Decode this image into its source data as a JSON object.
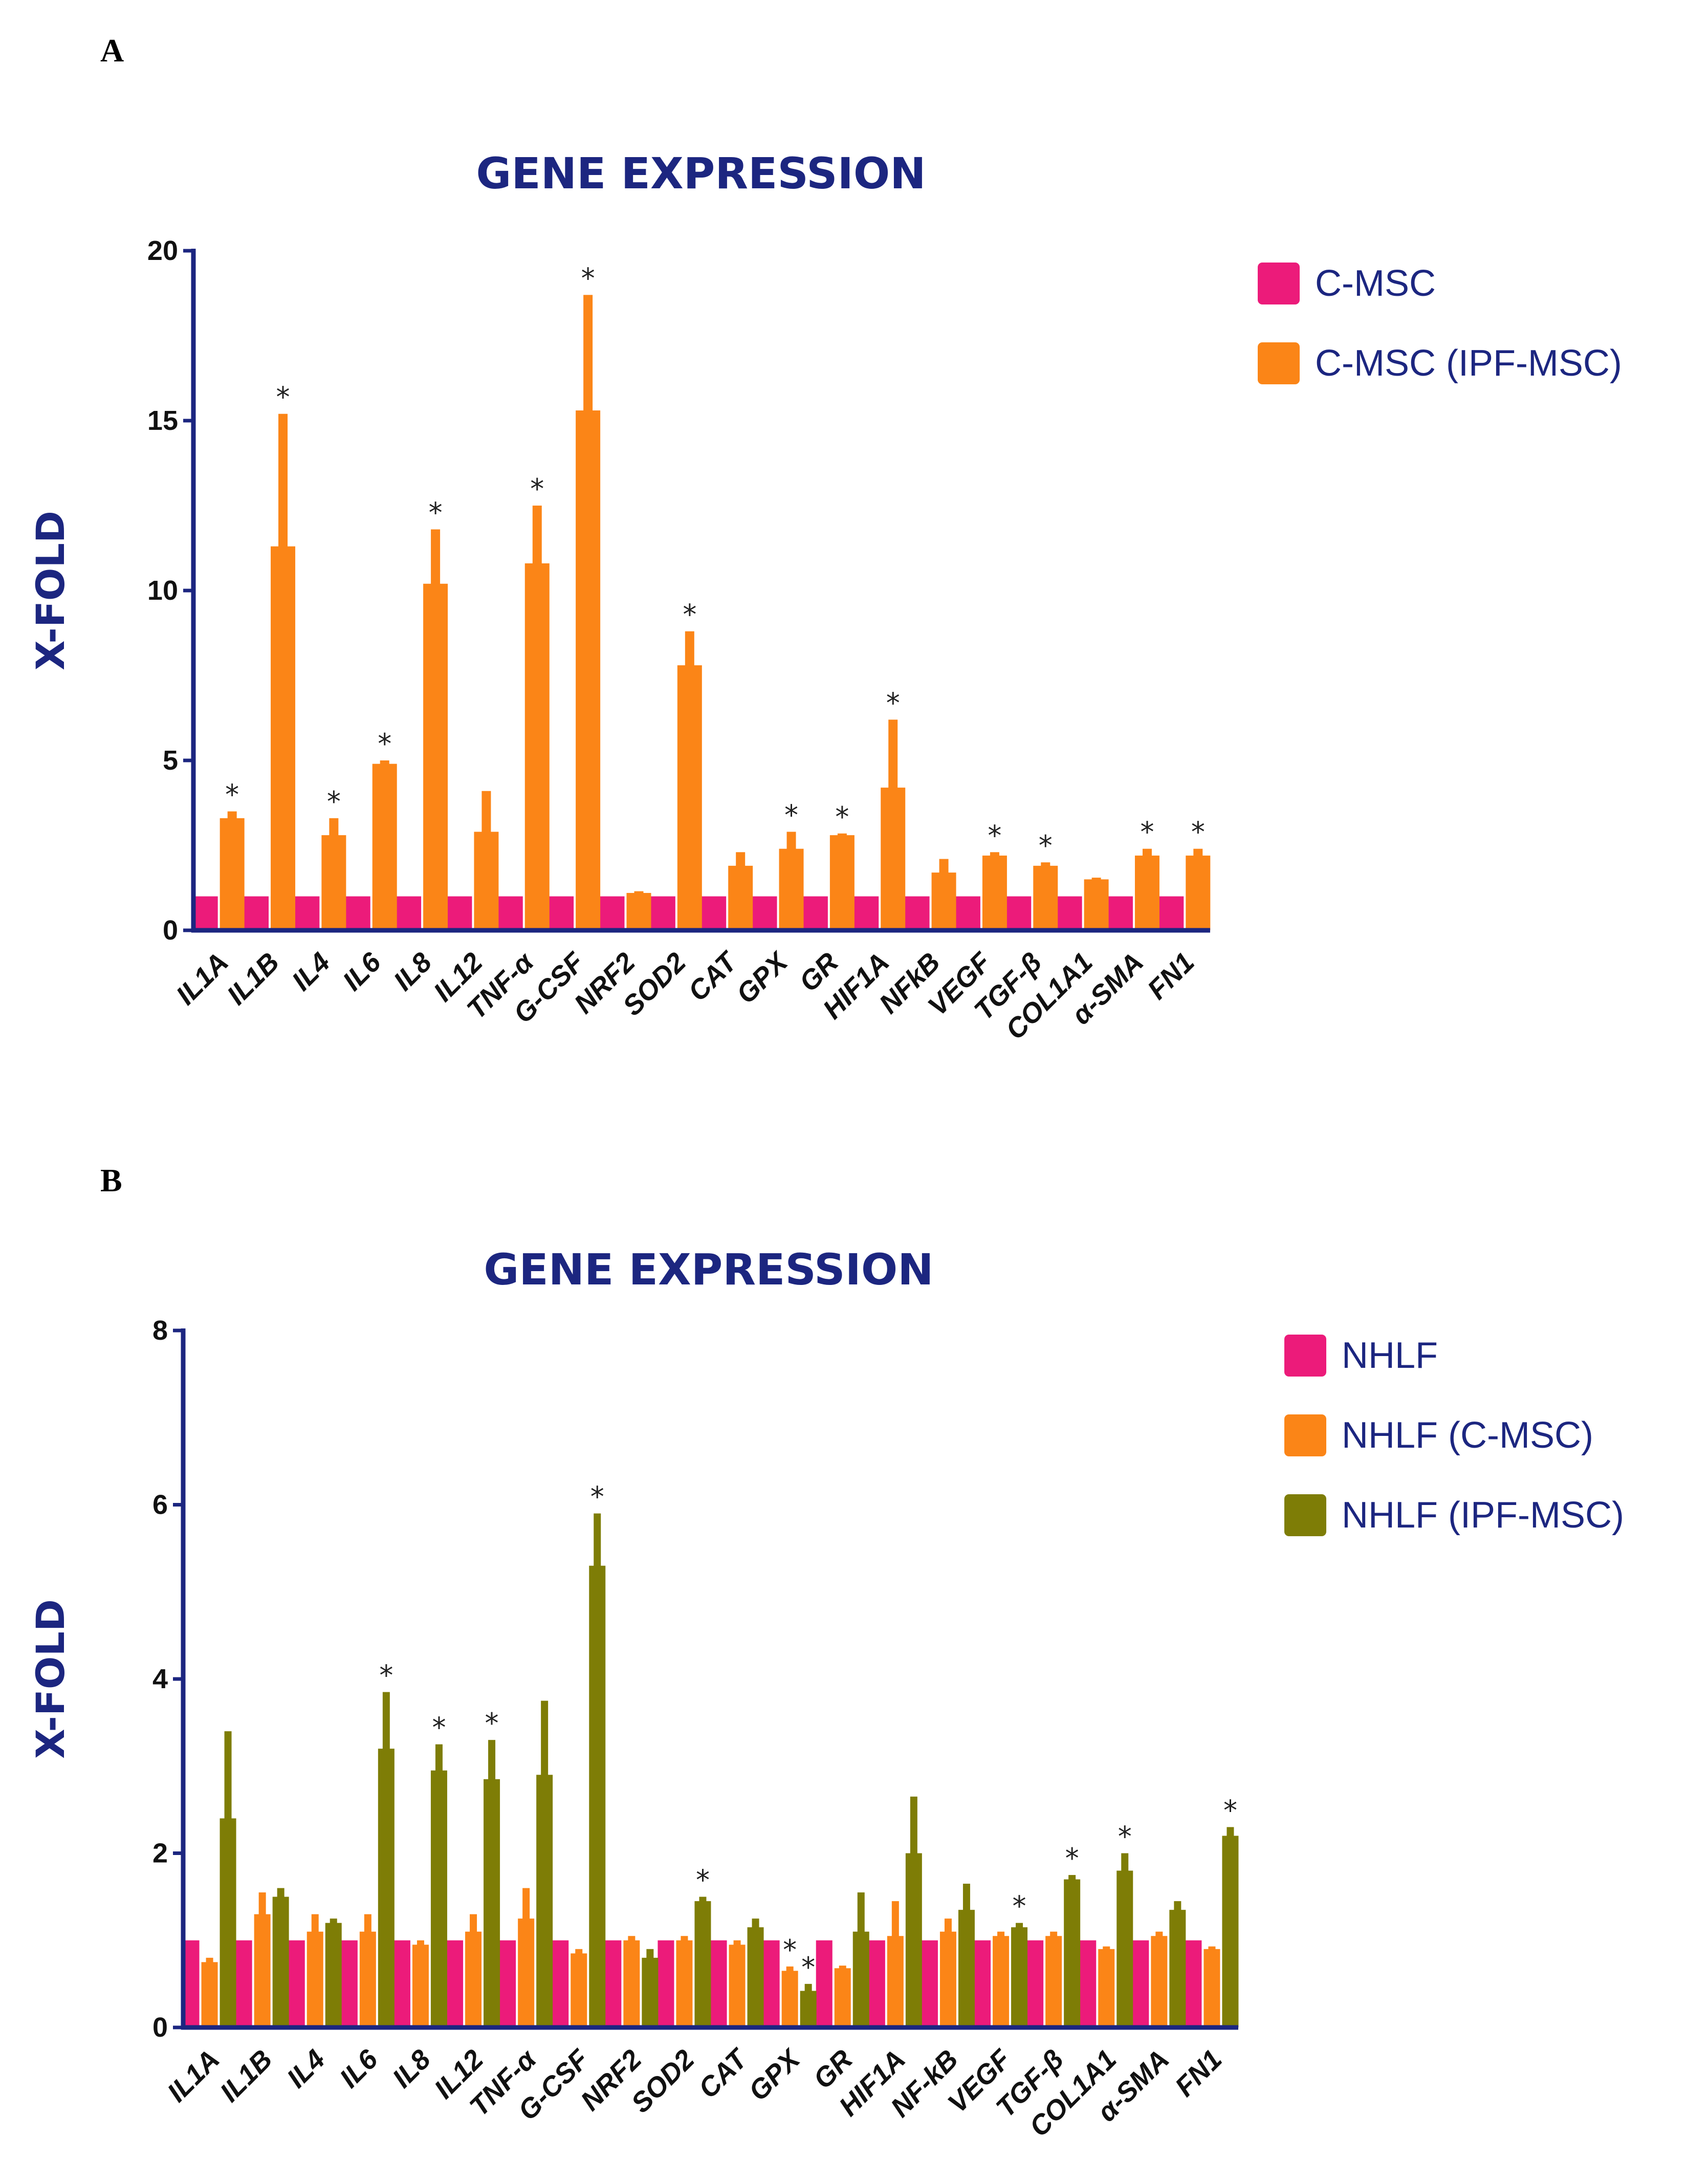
{
  "panels": [
    {
      "letter": "A"
    },
    {
      "letter": "B"
    }
  ],
  "chart_data": [
    {
      "type": "bar",
      "title": "GENE EXPRESSION",
      "xlabel": "",
      "ylabel": "X-FOLD",
      "ylim": [
        0,
        20
      ],
      "yticks": [
        0,
        5,
        10,
        15,
        20
      ],
      "legend_position": "top-right",
      "categories": [
        "IL1A",
        "IL1B",
        "IL4",
        "IL6",
        "IL8",
        "IL12",
        "TNF-α",
        "G-CSF",
        "NRF2",
        "SOD2",
        "CAT",
        "GPX",
        "GR",
        "HIF1A",
        "NFkB",
        "VEGF",
        "TGF-β",
        "COL1A1",
        "α-SMA",
        "FN1"
      ],
      "series": [
        {
          "name": "C-MSC",
          "color": "#ec1b7a",
          "values": [
            1,
            1,
            1,
            1,
            1,
            1,
            1,
            1,
            1,
            1,
            1,
            1,
            1,
            1,
            1,
            1,
            1,
            1,
            1,
            1
          ],
          "errors": [
            0,
            0,
            0,
            0,
            0,
            0,
            0,
            0,
            0,
            0,
            0,
            0,
            0,
            0,
            0,
            0,
            0,
            0,
            0,
            0
          ],
          "significant": [
            false,
            false,
            false,
            false,
            false,
            false,
            false,
            false,
            false,
            false,
            false,
            false,
            false,
            false,
            false,
            false,
            false,
            false,
            false,
            false
          ]
        },
        {
          "name": "C-MSC (IPF-MSC)",
          "color": "#fb8517",
          "values": [
            3.3,
            11.3,
            2.8,
            4.9,
            10.2,
            2.9,
            10.8,
            15.3,
            1.1,
            7.8,
            1.9,
            2.4,
            2.8,
            4.2,
            1.7,
            2.2,
            1.9,
            1.5,
            2.2,
            2.2
          ],
          "errors": [
            0.2,
            3.9,
            0.5,
            0.1,
            1.6,
            1.2,
            1.7,
            3.4,
            0.05,
            1.0,
            0.4,
            0.5,
            0.05,
            2.0,
            0.4,
            0.1,
            0.1,
            0.05,
            0.2,
            0.2
          ],
          "significant": [
            true,
            true,
            true,
            true,
            true,
            false,
            true,
            true,
            false,
            true,
            false,
            true,
            true,
            true,
            false,
            true,
            true,
            false,
            true,
            true
          ]
        }
      ]
    },
    {
      "type": "bar",
      "title": "GENE EXPRESSION",
      "xlabel": "",
      "ylabel": "X-FOLD",
      "ylim": [
        0,
        8
      ],
      "yticks": [
        0,
        2,
        4,
        6,
        8
      ],
      "legend_position": "top-right",
      "categories": [
        "IL1A",
        "IL1B",
        "IL4",
        "IL6",
        "IL8",
        "IL12",
        "TNF-α",
        "G-CSF",
        "NRF2",
        "SOD2",
        "CAT",
        "GPX",
        "GR",
        "HIF1A",
        "NF-kB",
        "VEGF",
        "TGF-β",
        "COL1A1",
        "α-SMA",
        "FN1"
      ],
      "series": [
        {
          "name": "NHLF",
          "color": "#ec1b7a",
          "values": [
            1,
            1,
            1,
            1,
            1,
            1,
            1,
            1,
            1,
            1,
            1,
            1,
            1,
            1,
            1,
            1,
            1,
            1,
            1,
            1
          ],
          "errors": [
            0,
            0,
            0,
            0,
            0,
            0,
            0,
            0,
            0,
            0,
            0,
            0,
            0,
            0,
            0,
            0,
            0,
            0,
            0,
            0
          ],
          "significant": [
            false,
            false,
            false,
            false,
            false,
            false,
            false,
            false,
            false,
            false,
            false,
            false,
            false,
            false,
            false,
            false,
            false,
            false,
            false,
            false
          ]
        },
        {
          "name": "NHLF (C-MSC)",
          "color": "#fb8517",
          "values": [
            0.75,
            1.3,
            1.1,
            1.1,
            0.95,
            1.1,
            1.25,
            0.85,
            1.0,
            1.0,
            0.95,
            0.65,
            0.68,
            1.05,
            1.1,
            1.05,
            1.05,
            0.9,
            1.05,
            0.9
          ],
          "errors": [
            0.05,
            0.25,
            0.2,
            0.2,
            0.05,
            0.2,
            0.35,
            0.05,
            0.05,
            0.05,
            0.05,
            0.05,
            0.03,
            0.4,
            0.15,
            0.05,
            0.05,
            0.03,
            0.05,
            0.03
          ],
          "significant": [
            false,
            false,
            false,
            false,
            false,
            false,
            false,
            false,
            false,
            false,
            false,
            true,
            false,
            false,
            false,
            false,
            false,
            false,
            false,
            false
          ]
        },
        {
          "name": "NHLF (IPF-MSC)",
          "color": "#7e7d06",
          "values": [
            2.4,
            1.5,
            1.2,
            3.2,
            2.95,
            2.85,
            2.9,
            5.3,
            0.8,
            1.45,
            1.15,
            0.42,
            1.1,
            2.0,
            1.35,
            1.15,
            1.7,
            1.8,
            1.35,
            2.2
          ],
          "errors": [
            1.0,
            0.1,
            0.05,
            0.65,
            0.3,
            0.45,
            0.85,
            0.6,
            0.1,
            0.05,
            0.1,
            0.08,
            0.45,
            0.65,
            0.3,
            0.05,
            0.05,
            0.2,
            0.1,
            0.1
          ],
          "significant": [
            false,
            false,
            false,
            true,
            true,
            true,
            false,
            true,
            false,
            true,
            false,
            true,
            false,
            false,
            false,
            true,
            true,
            true,
            false,
            true
          ]
        }
      ]
    }
  ]
}
